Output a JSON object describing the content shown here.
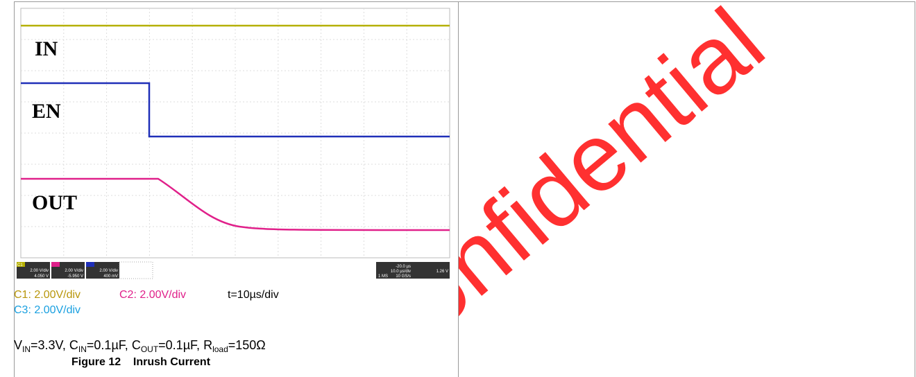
{
  "watermark": "Confidential",
  "scope": {
    "labels": {
      "in": "IN",
      "en": "EN",
      "out": "OUT"
    },
    "readouts": {
      "c1": "C1",
      "c1_scale": "2.00 V/div",
      "c1_offset": "4.050 V",
      "c2_scale": "2.00 V/div",
      "c2_offset": "-5.950 V",
      "c3_scale": "2.00 V/div",
      "c3_offset": "400 mV",
      "timebase": "10.0 µs/div",
      "sample": "10 GS/s",
      "points": "1 MS",
      "delay": "-20.0 µs",
      "trigger": "1.26 V"
    }
  },
  "caption": {
    "c1": "C1: 2.00V/div",
    "c2": "C2: 2.00V/div",
    "time": "t=10µs/div",
    "c3": "C3: 2.00V/div",
    "conditions": [
      "V",
      "IN",
      "=3.3V, C",
      "IN",
      "=0.1µF, C",
      "OUT",
      "=0.1µF, R",
      "load",
      "=150Ω"
    ],
    "figure": "Figure 12    Inrush Current"
  }
}
